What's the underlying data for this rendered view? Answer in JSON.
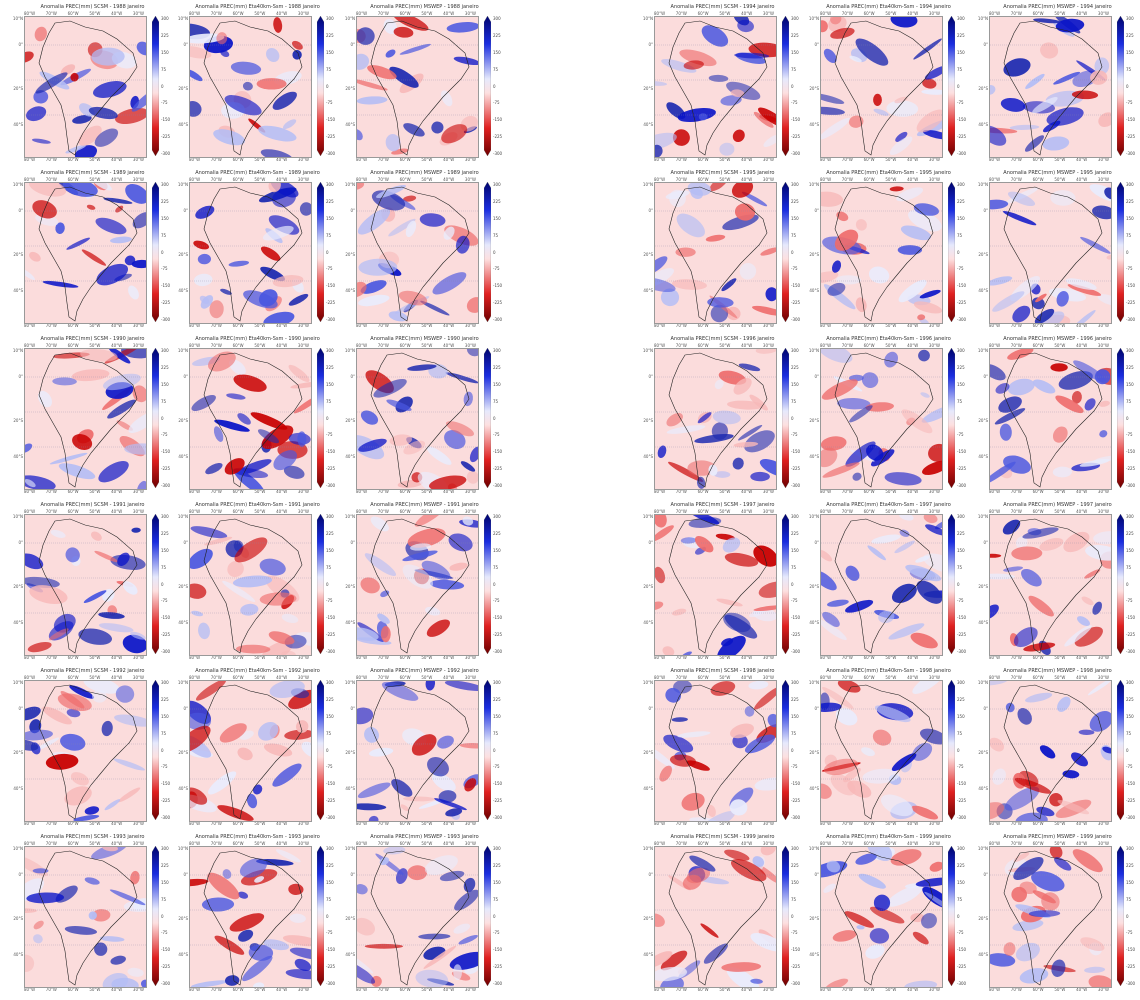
{
  "colors": {
    "red": "#c80000",
    "blue": "#0a14c8",
    "pink": "#fbdcdc",
    "lightblue": "#dfe3fb",
    "coast": "#222222"
  },
  "axes": {
    "lon_ticks": [
      "80°W",
      "70°W",
      "60°W",
      "50°W",
      "40°W",
      "30°W"
    ],
    "lat_ticks": [
      "10°N",
      "0°",
      "20°S",
      "40°S"
    ],
    "colorbar_ticks": [
      "300",
      "225",
      "150",
      "75",
      "0",
      "-75",
      "-150",
      "-225",
      "-300"
    ]
  },
  "panels": [
    {
      "title": "Anomalia PREC(mm) SCSM - 1988 janeiro"
    },
    {
      "title": "Anomalia PREC(mm) Eta40km-Ssm - 1988 janeiro"
    },
    {
      "title": "Anomalia PREC(mm) MSWEP - 1988 janeiro"
    },
    {
      "title": "Anomalia PREC(mm) SCSM - 1994 janeiro"
    },
    {
      "title": "Anomalia PREC(mm) Eta40km-Ssm - 1994 janeiro"
    },
    {
      "title": "Anomalia PREC(mm) MSWEP - 1994 janeiro"
    },
    {
      "title": "Anomalia PREC(mm) SCSM - 1989 janeiro"
    },
    {
      "title": "Anomalia PREC(mm) Eta40km-Ssm - 1989 janeiro"
    },
    {
      "title": "Anomalia PREC(mm) MSWEP - 1989 janeiro"
    },
    {
      "title": "Anomalia PREC(mm) SCSM - 1995 janeiro"
    },
    {
      "title": "Anomalia PREC(mm) Eta40km-Ssm - 1995 janeiro"
    },
    {
      "title": "Anomalia PREC(mm) MSWEP - 1995 janeiro"
    },
    {
      "title": "Anomalia PREC(mm) SCSM - 1990 janeiro"
    },
    {
      "title": "Anomalia PREC(mm) Eta40km-Ssm - 1990 janeiro"
    },
    {
      "title": "Anomalia PREC(mm) MSWEP - 1990 janeiro"
    },
    {
      "title": "Anomalia PREC(mm) SCSM - 1996 janeiro"
    },
    {
      "title": "Anomalia PREC(mm) Eta40km-Ssm - 1996 janeiro"
    },
    {
      "title": "Anomalia PREC(mm) MSWEP - 1996 janeiro"
    },
    {
      "title": "Anomalia PREC(mm) SCSM - 1991 janeiro"
    },
    {
      "title": "Anomalia PREC(mm) Eta40km-Ssm - 1991 janeiro"
    },
    {
      "title": "Anomalia PREC(mm) MSWEP - 1991 janeiro"
    },
    {
      "title": "Anomalia PREC(mm) SCSM - 1997 janeiro"
    },
    {
      "title": "Anomalia PREC(mm) Eta40km-Ssm - 1997 janeiro"
    },
    {
      "title": "Anomalia PREC(mm) MSWEP - 1997 janeiro"
    },
    {
      "title": "Anomalia PREC(mm) SCSM - 1992 janeiro"
    },
    {
      "title": "Anomalia PREC(mm) Eta40km-Ssm - 1992 janeiro"
    },
    {
      "title": "Anomalia PREC(mm) MSWEP - 1992 janeiro"
    },
    {
      "title": "Anomalia PREC(mm) SCSM - 1998 janeiro"
    },
    {
      "title": "Anomalia PREC(mm) Eta40km-Ssm - 1998 janeiro"
    },
    {
      "title": "Anomalia PREC(mm) MSWEP - 1998 janeiro"
    },
    {
      "title": "Anomalia PREC(mm) SCSM - 1993 janeiro"
    },
    {
      "title": "Anomalia PREC(mm) Eta40km-Ssm - 1993 janeiro"
    },
    {
      "title": "Anomalia PREC(mm) MSWEP - 1993 janeiro"
    },
    {
      "title": "Anomalia PREC(mm) SCSM - 1999 janeiro"
    },
    {
      "title": "Anomalia PREC(mm) Eta40km-Ssm - 1999 janeiro"
    },
    {
      "title": "Anomalia PREC(mm) MSWEP - 1999 janeiro"
    }
  ]
}
